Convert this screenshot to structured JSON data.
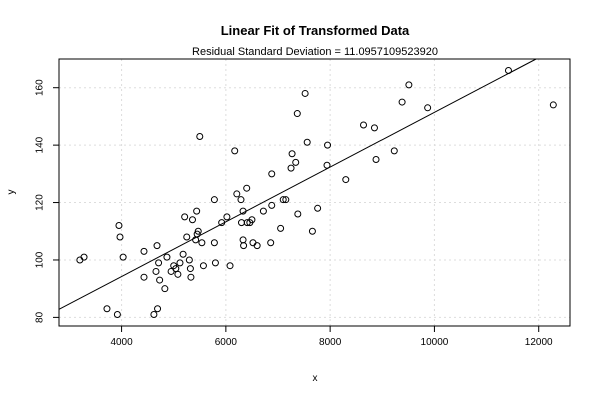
{
  "chart_data": {
    "type": "scatter",
    "title": "Linear Fit of Transformed Data",
    "subtitle": "Residual Standard Deviation =  11.0957109523920",
    "xlabel": "x",
    "ylabel": "y",
    "xlim": [
      2800,
      12600
    ],
    "ylim": [
      77,
      170
    ],
    "xticks": [
      4000,
      6000,
      8000,
      10000,
      12000
    ],
    "xtick_labels": [
      "4000",
      "6000",
      "8000",
      "10000",
      "12000"
    ],
    "yticks": [
      80,
      100,
      120,
      140,
      160
    ],
    "ytick_labels": [
      "80",
      "100",
      "120",
      "140",
      "160"
    ],
    "grid": true,
    "fit_line": [
      [
        2800,
        82.8
      ],
      [
        11950,
        170
      ]
    ],
    "points": [
      [
        3200,
        100
      ],
      [
        3280,
        101
      ],
      [
        3720,
        83
      ],
      [
        3920,
        81
      ],
      [
        3950,
        112
      ],
      [
        3970,
        108
      ],
      [
        4030,
        101
      ],
      [
        4430,
        103
      ],
      [
        4430,
        94
      ],
      [
        4620,
        81
      ],
      [
        4660,
        96
      ],
      [
        4680,
        105
      ],
      [
        4690,
        83
      ],
      [
        4710,
        99
      ],
      [
        4730,
        93
      ],
      [
        4830,
        90
      ],
      [
        4870,
        101
      ],
      [
        4950,
        96
      ],
      [
        5000,
        98
      ],
      [
        5040,
        97
      ],
      [
        5080,
        95
      ],
      [
        5120,
        99
      ],
      [
        5180,
        102
      ],
      [
        5210,
        115
      ],
      [
        5250,
        108
      ],
      [
        5300,
        100
      ],
      [
        5320,
        97
      ],
      [
        5330,
        94
      ],
      [
        5360,
        114
      ],
      [
        5420,
        107
      ],
      [
        5440,
        117
      ],
      [
        5450,
        109
      ],
      [
        5470,
        110
      ],
      [
        5500,
        143
      ],
      [
        5540,
        106
      ],
      [
        5570,
        98
      ],
      [
        5780,
        121
      ],
      [
        5780,
        106
      ],
      [
        5800,
        99
      ],
      [
        5920,
        113
      ],
      [
        6020,
        115
      ],
      [
        6080,
        98
      ],
      [
        6170,
        138
      ],
      [
        6210,
        123
      ],
      [
        6290,
        121
      ],
      [
        6300,
        113
      ],
      [
        6330,
        117
      ],
      [
        6330,
        107
      ],
      [
        6340,
        105
      ],
      [
        6400,
        125
      ],
      [
        6410,
        113
      ],
      [
        6460,
        113
      ],
      [
        6500,
        114
      ],
      [
        6520,
        106
      ],
      [
        6600,
        105
      ],
      [
        6720,
        117
      ],
      [
        6860,
        106
      ],
      [
        6880,
        119
      ],
      [
        6880,
        130
      ],
      [
        7050,
        111
      ],
      [
        7100,
        121
      ],
      [
        7150,
        121
      ],
      [
        7250,
        132
      ],
      [
        7270,
        137
      ],
      [
        7340,
        134
      ],
      [
        7370,
        151
      ],
      [
        7380,
        116
      ],
      [
        7520,
        158
      ],
      [
        7560,
        141
      ],
      [
        7660,
        110
      ],
      [
        7760,
        118
      ],
      [
        7940,
        133
      ],
      [
        7950,
        140
      ],
      [
        8300,
        128
      ],
      [
        8640,
        147
      ],
      [
        8850,
        146
      ],
      [
        8880,
        135
      ],
      [
        9230,
        138
      ],
      [
        9380,
        155
      ],
      [
        9510,
        161
      ],
      [
        9870,
        153
      ],
      [
        11420,
        166
      ],
      [
        12280,
        154
      ]
    ]
  }
}
